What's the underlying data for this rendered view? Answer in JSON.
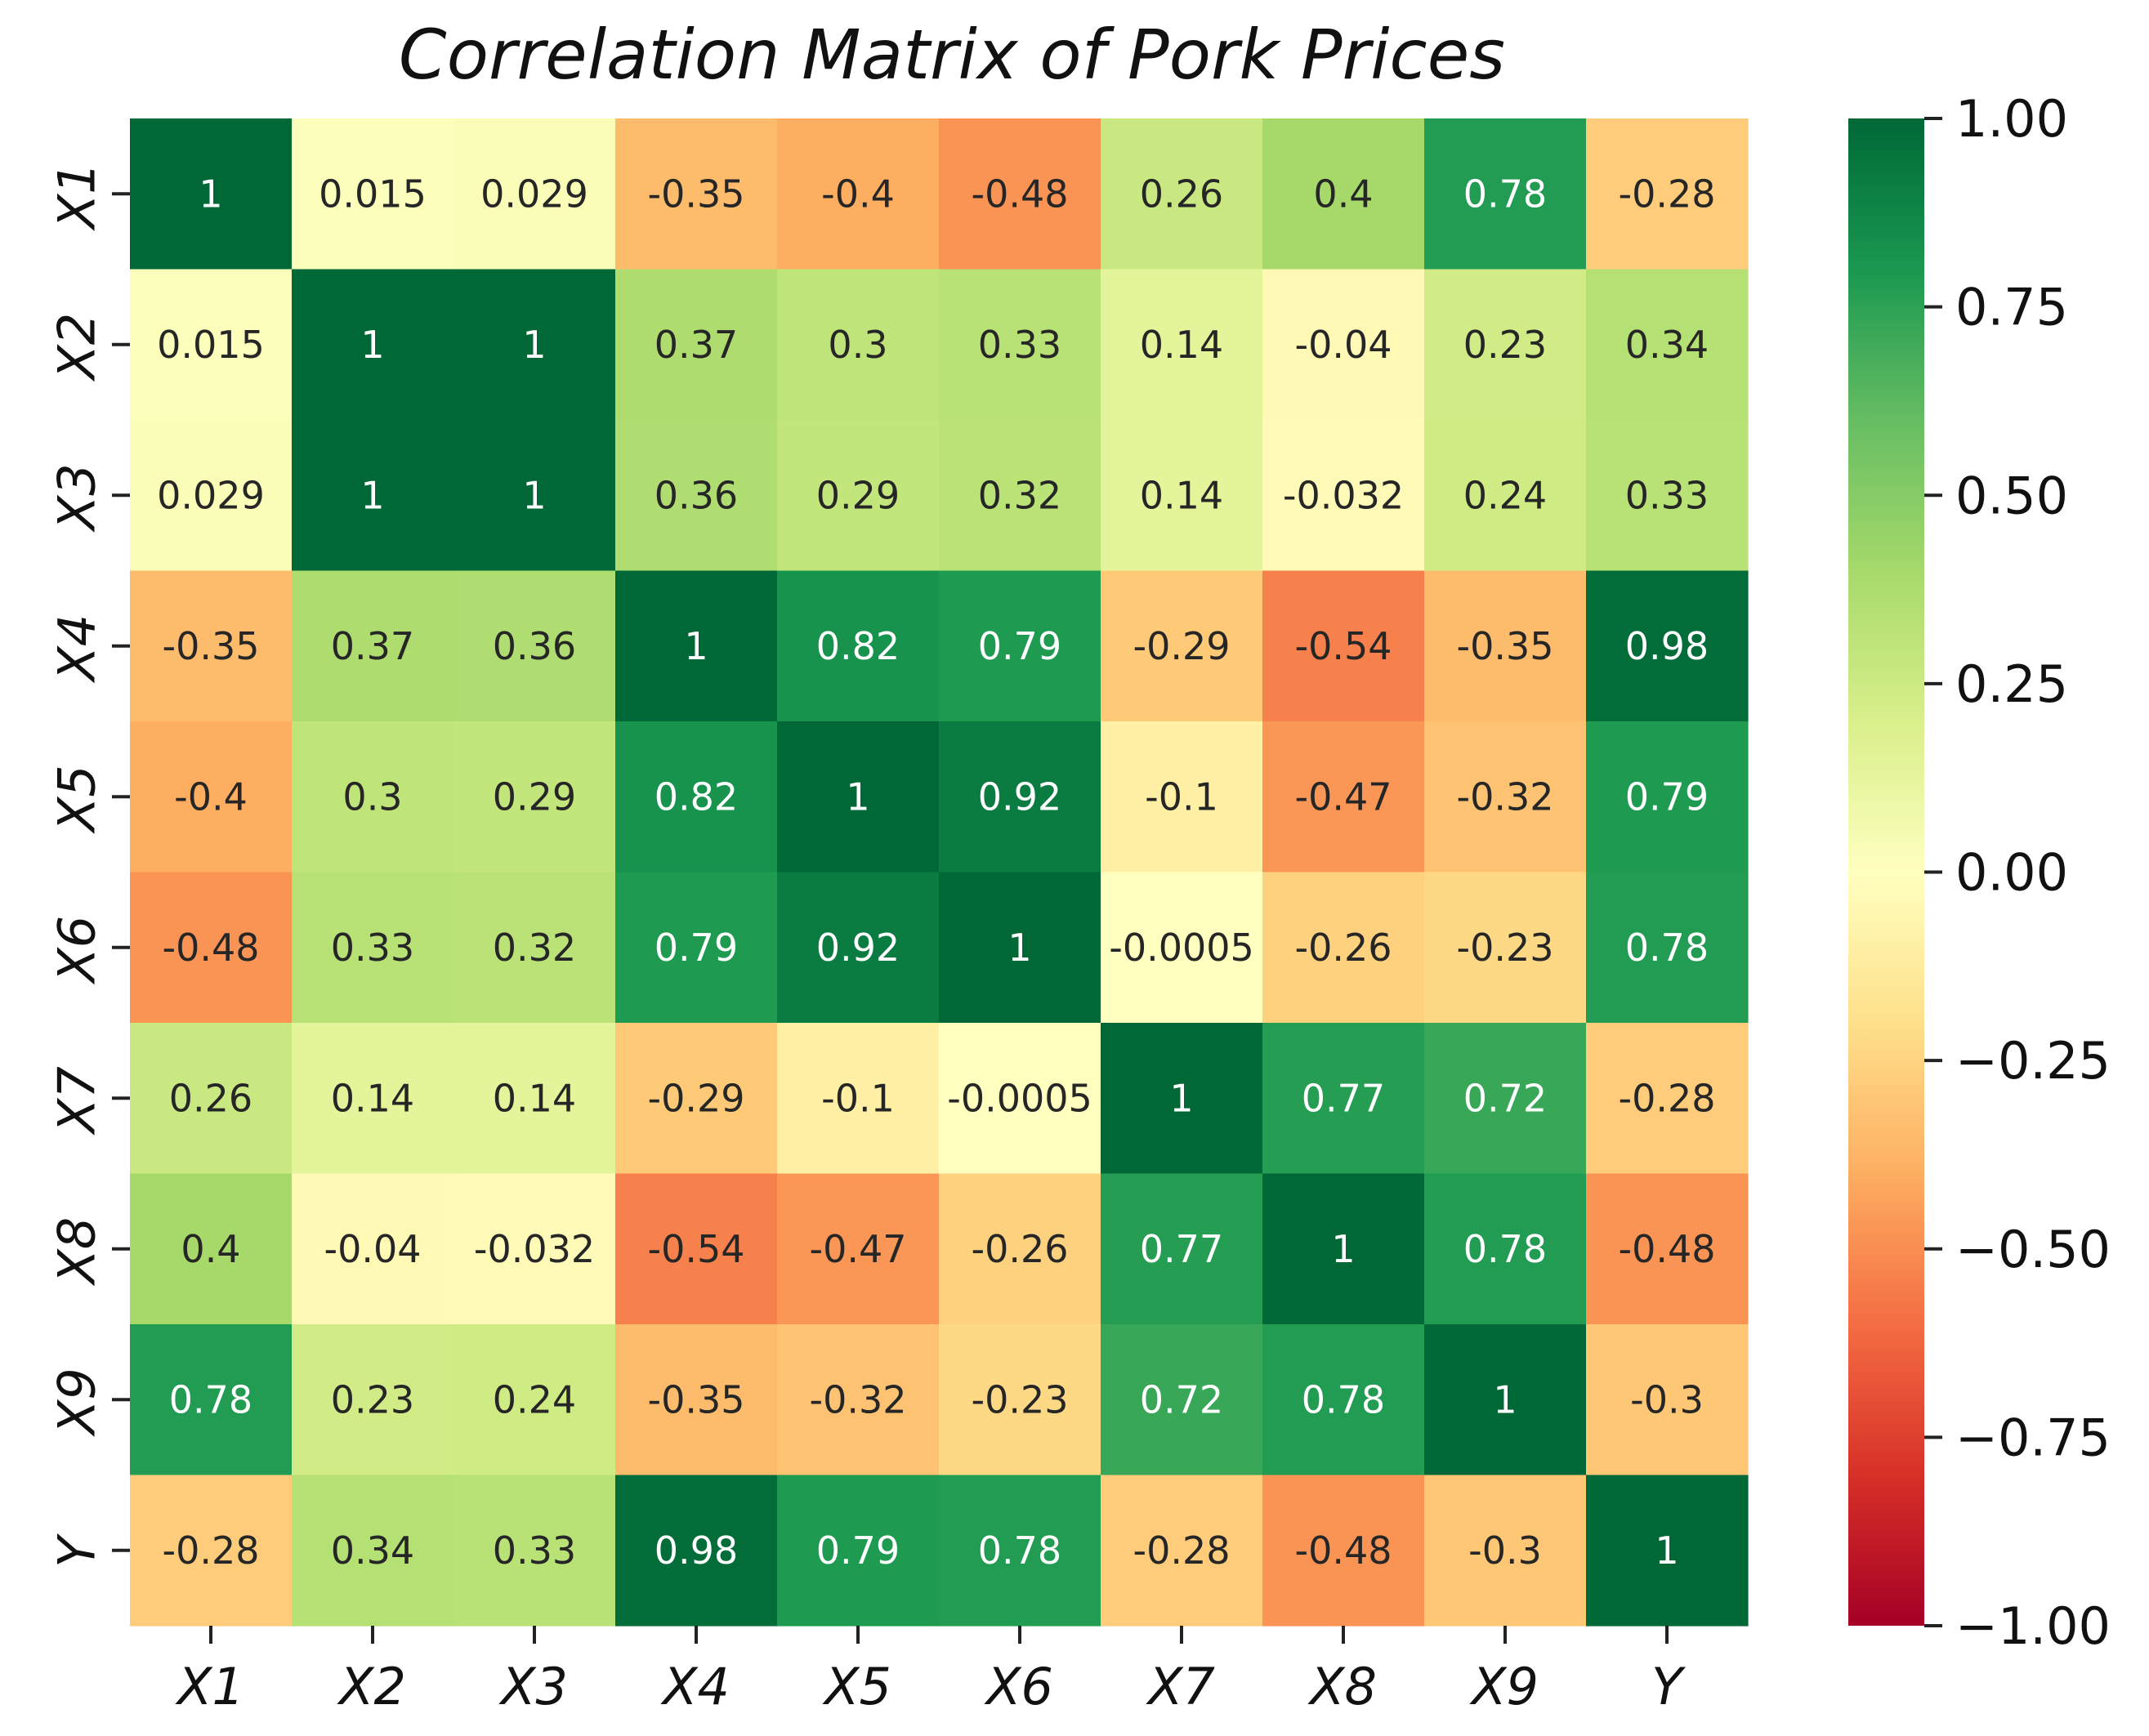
{
  "chart_data": {
    "type": "heatmap",
    "title": "Correlation Matrix of Pork Prices",
    "xlabel": "",
    "ylabel": "",
    "row_labels": [
      "X1",
      "X2",
      "X3",
      "X4",
      "X5",
      "X6",
      "X7",
      "X8",
      "X9",
      "Y"
    ],
    "col_labels": [
      "X1",
      "X2",
      "X3",
      "X4",
      "X5",
      "X6",
      "X7",
      "X8",
      "X9",
      "Y"
    ],
    "values": [
      [
        1,
        0.015,
        0.029,
        -0.35,
        -0.4,
        -0.48,
        0.26,
        0.4,
        0.78,
        -0.28
      ],
      [
        0.015,
        1,
        1,
        0.37,
        0.3,
        0.33,
        0.14,
        -0.04,
        0.23,
        0.34
      ],
      [
        0.029,
        1,
        1,
        0.36,
        0.29,
        0.32,
        0.14,
        -0.032,
        0.24,
        0.33
      ],
      [
        -0.35,
        0.37,
        0.36,
        1,
        0.82,
        0.79,
        -0.29,
        -0.54,
        -0.35,
        0.98
      ],
      [
        -0.4,
        0.3,
        0.29,
        0.82,
        1,
        0.92,
        -0.1,
        -0.47,
        -0.32,
        0.79
      ],
      [
        -0.48,
        0.33,
        0.32,
        0.79,
        0.92,
        1,
        -0.0005,
        -0.26,
        -0.23,
        0.78
      ],
      [
        0.26,
        0.14,
        0.14,
        -0.29,
        -0.1,
        -0.0005,
        1,
        0.77,
        0.72,
        -0.28
      ],
      [
        0.4,
        -0.04,
        -0.032,
        -0.54,
        -0.47,
        -0.26,
        0.77,
        1,
        0.78,
        -0.48
      ],
      [
        0.78,
        0.23,
        0.24,
        -0.35,
        -0.32,
        -0.23,
        0.72,
        0.78,
        1,
        -0.3
      ],
      [
        -0.28,
        0.34,
        0.33,
        0.98,
        0.79,
        0.78,
        -0.28,
        -0.48,
        -0.3,
        1
      ]
    ],
    "annotations": [
      [
        "1",
        "0.015",
        "0.029",
        "-0.35",
        "-0.4",
        "-0.48",
        "0.26",
        "0.4",
        "0.78",
        "-0.28"
      ],
      [
        "0.015",
        "1",
        "1",
        "0.37",
        "0.3",
        "0.33",
        "0.14",
        "-0.04",
        "0.23",
        "0.34"
      ],
      [
        "0.029",
        "1",
        "1",
        "0.36",
        "0.29",
        "0.32",
        "0.14",
        "-0.032",
        "0.24",
        "0.33"
      ],
      [
        "-0.35",
        "0.37",
        "0.36",
        "1",
        "0.82",
        "0.79",
        "-0.29",
        "-0.54",
        "-0.35",
        "0.98"
      ],
      [
        "-0.4",
        "0.3",
        "0.29",
        "0.82",
        "1",
        "0.92",
        "-0.1",
        "-0.47",
        "-0.32",
        "0.79"
      ],
      [
        "-0.48",
        "0.33",
        "0.32",
        "0.79",
        "0.92",
        "1",
        "-0.0005",
        "-0.26",
        "-0.23",
        "0.78"
      ],
      [
        "0.26",
        "0.14",
        "0.14",
        "-0.29",
        "-0.1",
        "-0.0005",
        "1",
        "0.77",
        "0.72",
        "-0.28"
      ],
      [
        "0.4",
        "-0.04",
        "-0.032",
        "-0.54",
        "-0.47",
        "-0.26",
        "0.77",
        "1",
        "0.78",
        "-0.48"
      ],
      [
        "0.78",
        "0.23",
        "0.24",
        "-0.35",
        "-0.32",
        "-0.23",
        "0.72",
        "0.78",
        "1",
        "-0.3"
      ],
      [
        "-0.28",
        "0.34",
        "0.33",
        "0.98",
        "0.79",
        "0.78",
        "-0.28",
        "-0.48",
        "-0.3",
        "1"
      ]
    ],
    "colormap": "RdYlGn",
    "vmin": -1,
    "vmax": 1,
    "colorbar": {
      "ticks": [
        1.0,
        0.75,
        0.5,
        0.25,
        0.0,
        -0.25,
        -0.5,
        -0.75,
        -1.0
      ],
      "tick_labels": [
        "1.00",
        "0.75",
        "0.50",
        "0.25",
        "0.00",
        "−0.25",
        "−0.50",
        "−0.75",
        "−1.00"
      ],
      "placement": "right"
    },
    "grid": false
  }
}
